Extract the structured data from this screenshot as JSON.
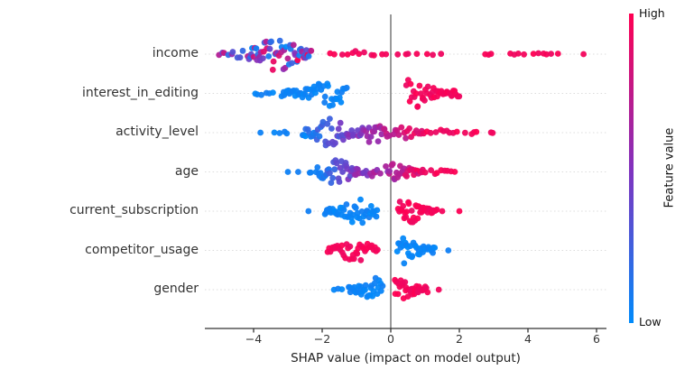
{
  "chart_data": {
    "type": "scatter",
    "subtype": "shap-beeswarm-summary",
    "title": "",
    "xlabel": "SHAP value (impact on model output)",
    "ylabel": "",
    "xlim": [
      -5.4,
      6.3
    ],
    "xtick_values": [
      -4,
      -2,
      0,
      2,
      4,
      6
    ],
    "xtick_labels": [
      "−4",
      "−2",
      "0",
      "2",
      "4",
      "6"
    ],
    "zero_line_value": 0,
    "grid": "dotted-horizontal-per-feature",
    "legend_position": "right-colorbar",
    "colors": {
      "low": "#008bfb",
      "mid": "#8232be",
      "high": "#ff0052",
      "zero_line": "#999999",
      "axis": "#333333",
      "gridline": "#dcdcdc"
    },
    "colorbar": {
      "label": "Feature value",
      "high_label": "High",
      "low_label": "Low"
    },
    "features": [
      {
        "name": "income",
        "clusters": [
          {
            "x0": -5.08,
            "x1": -4.15,
            "n": 10,
            "peak": 0.7,
            "spread": 6,
            "value": "mixed"
          },
          {
            "x0": -4.15,
            "x1": -2.3,
            "n": 56,
            "peak": 0.45,
            "spread": 18,
            "value": "mixed"
          },
          {
            "x0": -1.8,
            "x1": -0.08,
            "n": 12,
            "peak": 0.5,
            "spread": 3.5,
            "value": "high"
          },
          {
            "x0": 0.15,
            "x1": 0.8,
            "n": 4,
            "peak": 0.5,
            "spread": 2,
            "value": "high"
          },
          {
            "x0": 0.95,
            "x1": 1.55,
            "n": 3,
            "peak": 0.5,
            "spread": 1.5,
            "value": "high"
          },
          {
            "x0": 2.72,
            "x1": 3.0,
            "n": 3,
            "peak": 0.5,
            "spread": 1.5,
            "value": "high"
          },
          {
            "x0": 3.38,
            "x1": 3.9,
            "n": 4,
            "peak": 0.5,
            "spread": 1.5,
            "value": "high"
          },
          {
            "x0": 4.05,
            "x1": 4.95,
            "n": 6,
            "peak": 0.5,
            "spread": 1.5,
            "value": "high"
          },
          {
            "x0": 5.62,
            "x1": 5.62,
            "n": 1,
            "peak": 0.5,
            "spread": 0,
            "value": "high"
          }
        ]
      },
      {
        "name": "interest_in_editing",
        "clusters": [
          {
            "x0": -4.05,
            "x1": -3.35,
            "n": 6,
            "peak": 0.5,
            "spread": 2.5,
            "value": "low"
          },
          {
            "x0": -3.2,
            "x1": -1.28,
            "n": 48,
            "peak": 0.72,
            "spread": 14,
            "value": "low"
          },
          {
            "x0": 0.45,
            "x1": 2.0,
            "n": 42,
            "peak": 0.12,
            "spread": 16,
            "value": "high"
          }
        ]
      },
      {
        "name": "activity_level",
        "clusters": [
          {
            "x0": -3.8,
            "x1": -3.8,
            "n": 1,
            "peak": 0.5,
            "spread": 0,
            "value": "low"
          },
          {
            "x0": -3.45,
            "x1": -2.95,
            "n": 4,
            "peak": 0.5,
            "spread": 2,
            "value": "low"
          },
          {
            "x0": -2.6,
            "x1": -1.05,
            "n": 40,
            "peak": 0.55,
            "spread": 16,
            "value": "grad",
            "v0": 0.05,
            "v1": 0.5
          },
          {
            "x0": -1.0,
            "x1": -0.03,
            "n": 24,
            "peak": 0.5,
            "spread": 13,
            "value": "grad",
            "v0": 0.45,
            "v1": 0.75
          },
          {
            "x0": 0.05,
            "x1": 1.0,
            "n": 16,
            "peak": 0.3,
            "spread": 8,
            "value": "grad",
            "v0": 0.7,
            "v1": 0.95
          },
          {
            "x0": 1.05,
            "x1": 2.0,
            "n": 9,
            "peak": 0.4,
            "spread": 4,
            "value": "high"
          },
          {
            "x0": 2.15,
            "x1": 2.6,
            "n": 4,
            "peak": 0.5,
            "spread": 2,
            "value": "high"
          },
          {
            "x0": 2.85,
            "x1": 3.05,
            "n": 2,
            "peak": 0.5,
            "spread": 1,
            "value": "high"
          }
        ]
      },
      {
        "name": "age",
        "clusters": [
          {
            "x0": -3.0,
            "x1": -3.0,
            "n": 1,
            "peak": 0.5,
            "spread": 0,
            "value": "low"
          },
          {
            "x0": -2.7,
            "x1": -2.7,
            "n": 1,
            "peak": 0.5,
            "spread": 0,
            "value": "low"
          },
          {
            "x0": -2.4,
            "x1": -2.3,
            "n": 2,
            "peak": 0.5,
            "spread": 1,
            "value": "low"
          },
          {
            "x0": -2.2,
            "x1": -0.9,
            "n": 38,
            "peak": 0.45,
            "spread": 15,
            "value": "grad",
            "v0": 0.05,
            "v1": 0.55
          },
          {
            "x0": -0.85,
            "x1": -0.3,
            "n": 10,
            "peak": 0.5,
            "spread": 6,
            "value": "grad",
            "v0": 0.45,
            "v1": 0.65
          },
          {
            "x0": -0.15,
            "x1": 0.95,
            "n": 30,
            "peak": 0.25,
            "spread": 12,
            "value": "grad",
            "v0": 0.6,
            "v1": 0.95
          },
          {
            "x0": 1.0,
            "x1": 1.9,
            "n": 9,
            "peak": 0.3,
            "spread": 4,
            "value": "high"
          }
        ]
      },
      {
        "name": "current_subscription",
        "clusters": [
          {
            "x0": -2.4,
            "x1": -2.4,
            "n": 1,
            "peak": 0.5,
            "spread": 0,
            "value": "low"
          },
          {
            "x0": -1.95,
            "x1": -0.38,
            "n": 45,
            "peak": 0.62,
            "spread": 15,
            "value": "low"
          },
          {
            "x0": 0.2,
            "x1": 1.35,
            "n": 40,
            "peak": 0.2,
            "spread": 16,
            "value": "high"
          },
          {
            "x0": 1.5,
            "x1": 1.5,
            "n": 1,
            "peak": 0.5,
            "spread": 0,
            "value": "high"
          },
          {
            "x0": 2.0,
            "x1": 2.0,
            "n": 1,
            "peak": 0.5,
            "spread": 0,
            "value": "high"
          }
        ]
      },
      {
        "name": "competitor_usage",
        "clusters": [
          {
            "x0": -1.85,
            "x1": -0.38,
            "n": 38,
            "peak": 0.55,
            "spread": 12,
            "value": "high"
          },
          {
            "x0": 0.18,
            "x1": 1.3,
            "n": 38,
            "peak": 0.2,
            "spread": 16,
            "value": "low"
          },
          {
            "x0": 1.68,
            "x1": 1.68,
            "n": 1,
            "peak": 0.5,
            "spread": 0,
            "value": "low"
          }
        ]
      },
      {
        "name": "gender",
        "clusters": [
          {
            "x0": -1.7,
            "x1": -1.32,
            "n": 3,
            "peak": 0.5,
            "spread": 1.5,
            "value": "low"
          },
          {
            "x0": -1.25,
            "x1": -0.22,
            "n": 32,
            "peak": 0.75,
            "spread": 13,
            "value": "low"
          },
          {
            "x0": 0.1,
            "x1": 1.08,
            "n": 34,
            "peak": 0.2,
            "spread": 15,
            "value": "high"
          },
          {
            "x0": 1.4,
            "x1": 1.4,
            "n": 1,
            "peak": 0.5,
            "spread": 0,
            "value": "high"
          }
        ]
      }
    ]
  }
}
